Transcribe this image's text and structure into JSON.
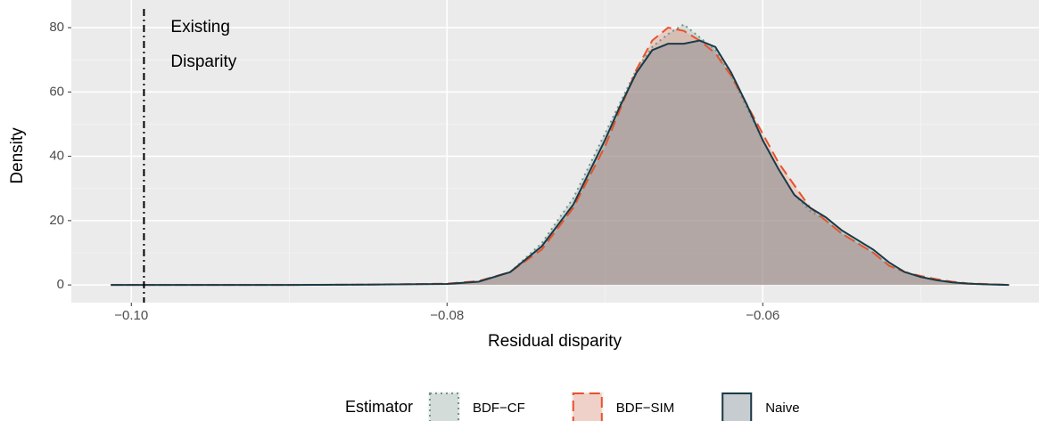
{
  "chart_data": {
    "type": "density",
    "x_label": "Residual disparity",
    "y_label": "Density",
    "x": [
      -0.1013,
      -0.09,
      -0.085,
      -0.08,
      -0.078,
      -0.076,
      -0.074,
      -0.072,
      -0.07,
      -0.069,
      -0.068,
      -0.067,
      -0.066,
      -0.065,
      -0.064,
      -0.063,
      -0.062,
      -0.061,
      -0.06,
      -0.059,
      -0.058,
      -0.057,
      -0.056,
      -0.055,
      -0.054,
      -0.053,
      -0.052,
      -0.051,
      -0.05,
      -0.049,
      -0.048,
      -0.047,
      -0.046,
      -0.0444
    ],
    "series": [
      {
        "name": "BDF−CF",
        "color": "#6f968c",
        "fill": "#8aa8a0",
        "linetype": "dotted",
        "values": [
          0,
          0,
          0.1,
          0.3,
          1,
          4,
          13,
          27,
          47,
          57,
          67,
          74,
          78,
          81,
          77,
          73,
          65,
          55,
          45,
          36,
          28,
          23,
          20,
          16,
          13,
          10,
          6,
          4,
          2.5,
          1.5,
          0.8,
          0.4,
          0.2,
          0
        ]
      },
      {
        "name": "BDF−SIM",
        "color": "#e8532b",
        "fill": "#e8866b",
        "linetype": "dashed",
        "values": [
          0,
          0,
          0.1,
          0.4,
          1.2,
          4,
          11,
          24,
          43,
          55,
          67,
          76,
          80,
          79,
          76,
          72,
          65,
          56,
          47,
          38,
          31,
          24,
          20,
          16,
          13,
          10,
          6,
          4,
          2.8,
          1.8,
          1,
          0.5,
          0.3,
          0
        ]
      },
      {
        "name": "Naive",
        "color": "#1b3a47",
        "fill": "#5f7580",
        "linetype": "solid",
        "values": [
          0,
          0,
          0.1,
          0.3,
          1,
          4,
          12,
          25,
          45,
          56,
          66,
          73,
          75,
          75,
          76,
          74,
          66,
          56,
          45,
          36,
          28,
          24,
          21,
          17,
          14,
          11,
          7,
          4,
          2.5,
          1.5,
          0.8,
          0.4,
          0.2,
          0
        ]
      }
    ],
    "xlim": [
      -0.1038,
      -0.0425
    ],
    "xticks": [
      {
        "value": -0.1,
        "label": "−0.10"
      },
      {
        "value": -0.08,
        "label": "−0.08"
      },
      {
        "value": -0.06,
        "label": "−0.06"
      }
    ],
    "ylim": [
      -5.5,
      88.6
    ],
    "yticks": [
      0,
      20,
      40,
      60,
      80
    ],
    "grid": true,
    "annotation": {
      "x": -0.0992,
      "lines": [
        "Existing",
        "Disparity"
      ]
    },
    "legend": {
      "title": "Estimator",
      "position": "bottom"
    }
  }
}
